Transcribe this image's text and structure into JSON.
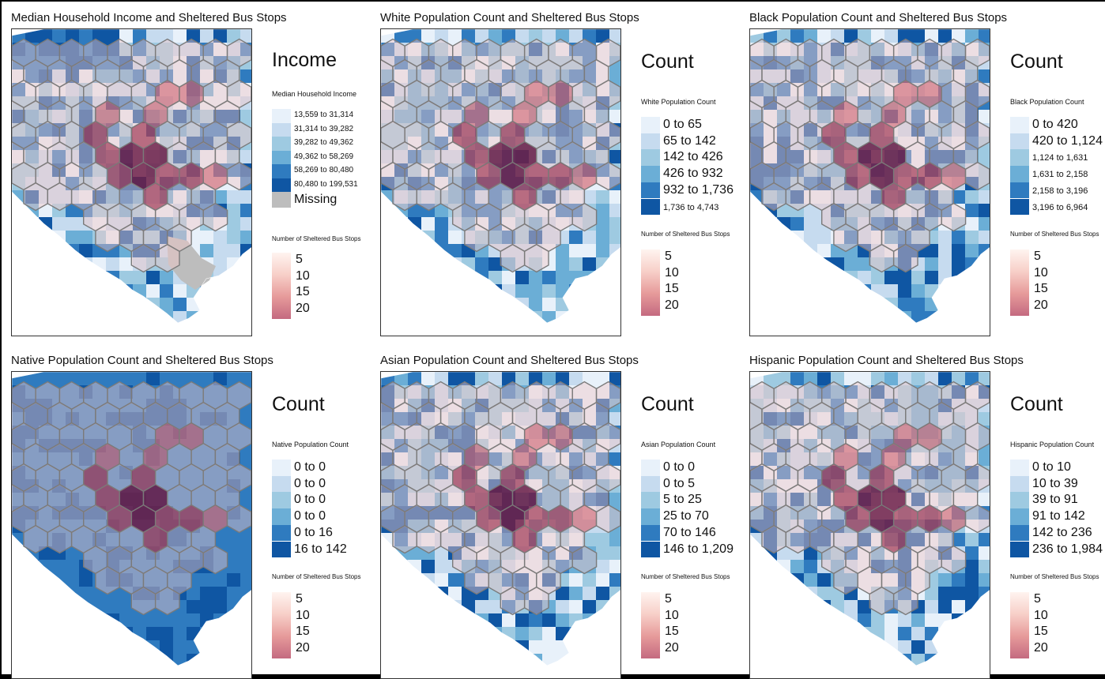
{
  "colors": {
    "blues": [
      "#e8f1fa",
      "#c6dbef",
      "#9ecae1",
      "#6baed6",
      "#2f7bbf",
      "#0f56a3"
    ],
    "missing": "#bdbdbd",
    "hex_fill": "#f1c7c7",
    "hex_edge": "#7a7a7a"
  },
  "bus_legend": {
    "title": "Number of Sheltered Bus Stops",
    "labels": [
      "5",
      "10",
      "15",
      "20"
    ]
  },
  "panels": [
    {
      "title": "Median Household Income and Sheltered Bus Stops",
      "legend_title": "Income",
      "legend_subtitle": "Median Household Income",
      "classes": [
        "13,559 to 31,314",
        "31,314 to 39,282",
        "39,282 to 49,362",
        "49,362 to 58,269",
        "58,269 to 80,480",
        "80,480 to 199,531"
      ],
      "missing_label": "Missing"
    },
    {
      "title": "White Population Count and Sheltered Bus Stops",
      "legend_title": "Count",
      "legend_subtitle": "White Population Count",
      "classes": [
        "0 to 65",
        "65 to 142",
        "142 to 426",
        "426 to 932",
        "932 to 1,736",
        "1,736 to 4,743"
      ]
    },
    {
      "title": "Black Population Count and Sheltered Bus Stops",
      "legend_title": "Count",
      "legend_subtitle": "Black Population Count",
      "classes": [
        "0 to 420",
        "420 to 1,124",
        "1,124 to 1,631",
        "1,631 to 2,158",
        "2,158 to 3,196",
        "3,196 to 6,964"
      ]
    },
    {
      "title": "Native Population Count and Sheltered Bus Stops",
      "legend_title": "Count",
      "legend_subtitle": "Native Population Count",
      "classes": [
        "0 to 0",
        "0 to 0",
        "0 to 0",
        "0 to 0",
        "0 to 16",
        "16 to 142"
      ]
    },
    {
      "title": "Asian Population Count and Sheltered Bus Stops",
      "legend_title": "Count",
      "legend_subtitle": "Asian Population Count",
      "classes": [
        "0 to 0",
        "0 to 5",
        "5 to 25",
        "25 to 70",
        "70 to 146",
        "146 to 1,209"
      ]
    },
    {
      "title": "Hispanic Population Count and Sheltered Bus Stops",
      "legend_title": "Count",
      "legend_subtitle": "Hispanic Population Count",
      "classes": [
        "0 to 10",
        "10 to 39",
        "39 to 91",
        "91 to 142",
        "142 to 236",
        "236 to 1,984"
      ]
    }
  ]
}
